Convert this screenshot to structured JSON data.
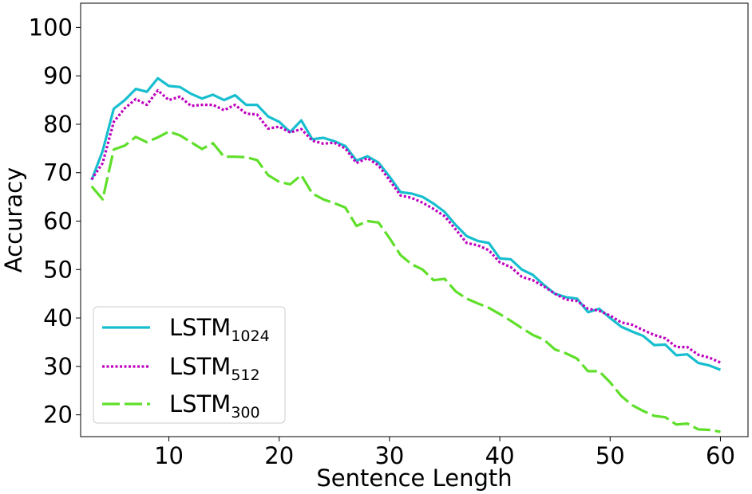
{
  "chart_data": {
    "type": "line",
    "xlabel": "Sentence Length",
    "ylabel": "Accuracy",
    "xlim": [
      2,
      62.5
    ],
    "ylim": [
      15.5,
      105
    ],
    "xticks": [
      10,
      20,
      30,
      40,
      50,
      60
    ],
    "yticks": [
      20,
      30,
      40,
      50,
      60,
      70,
      80,
      90,
      100
    ],
    "grid": false,
    "legend_position": "lower-left",
    "x": [
      3,
      4,
      5,
      6,
      7,
      8,
      9,
      10,
      11,
      12,
      13,
      14,
      15,
      16,
      17,
      18,
      19,
      20,
      21,
      22,
      23,
      24,
      25,
      26,
      27,
      28,
      29,
      30,
      31,
      32,
      33,
      34,
      35,
      36,
      37,
      38,
      39,
      40,
      41,
      42,
      43,
      44,
      45,
      46,
      47,
      48,
      49,
      50,
      51,
      52,
      53,
      54,
      55,
      56,
      57,
      58,
      59,
      60
    ],
    "series": [
      {
        "name": "LSTM",
        "subscript": "1024",
        "color": "#17becf",
        "dash": "solid",
        "values": [
          68.5,
          74.5,
          83.2,
          85.0,
          87.3,
          86.7,
          89.5,
          87.9,
          87.7,
          86.3,
          85.3,
          86.1,
          85.0,
          86.0,
          84.0,
          84.0,
          81.6,
          80.5,
          78.4,
          80.8,
          76.9,
          77.2,
          76.5,
          75.5,
          72.5,
          73.4,
          72.1,
          69.2,
          66.0,
          65.7,
          65.0,
          63.6,
          61.9,
          59.2,
          56.9,
          55.9,
          55.5,
          52.3,
          52.1,
          50.0,
          48.9,
          46.8,
          45.0,
          44.3,
          44.0,
          41.2,
          41.9,
          40.0,
          38.2,
          37.2,
          36.3,
          34.4,
          34.5,
          32.3,
          32.5,
          30.7,
          30.2,
          29.3
        ]
      },
      {
        "name": "LSTM",
        "subscript": "512",
        "color": "#bf00bf",
        "dash": "dotted",
        "values": [
          68.6,
          72.0,
          80.5,
          83.3,
          85.2,
          84.0,
          87.0,
          85.0,
          85.7,
          83.8,
          84.0,
          84.0,
          82.9,
          84.0,
          82.2,
          82.0,
          79.1,
          79.5,
          78.3,
          79.0,
          76.6,
          76.0,
          76.2,
          75.0,
          72.0,
          73.0,
          71.5,
          68.5,
          65.3,
          64.8,
          63.8,
          62.5,
          61.0,
          58.3,
          55.5,
          55.0,
          54.0,
          51.5,
          50.5,
          48.5,
          47.8,
          46.5,
          45.0,
          43.8,
          43.5,
          41.9,
          41.5,
          40.5,
          39.1,
          38.6,
          37.5,
          36.5,
          35.8,
          34.0,
          34.0,
          32.4,
          31.8,
          30.8
        ]
      },
      {
        "name": "LSTM",
        "subscript": "300",
        "color": "#5fdf2a",
        "dash": "dashed",
        "values": [
          67.2,
          64.5,
          74.8,
          75.6,
          77.4,
          76.3,
          77.3,
          78.5,
          77.7,
          76.3,
          74.9,
          76.1,
          73.3,
          73.3,
          73.2,
          72.6,
          69.5,
          68.1,
          67.6,
          69.5,
          65.7,
          64.5,
          63.7,
          62.8,
          59.0,
          60.0,
          59.7,
          56.5,
          53.0,
          51.1,
          50.0,
          47.8,
          48.1,
          45.5,
          44.0,
          43.0,
          42.1,
          40.8,
          39.4,
          37.9,
          36.5,
          35.5,
          33.5,
          32.7,
          31.6,
          29.0,
          29.0,
          26.7,
          23.9,
          22.0,
          20.8,
          19.8,
          19.5,
          18.0,
          18.2,
          17.0,
          16.9,
          16.5
        ]
      }
    ]
  }
}
